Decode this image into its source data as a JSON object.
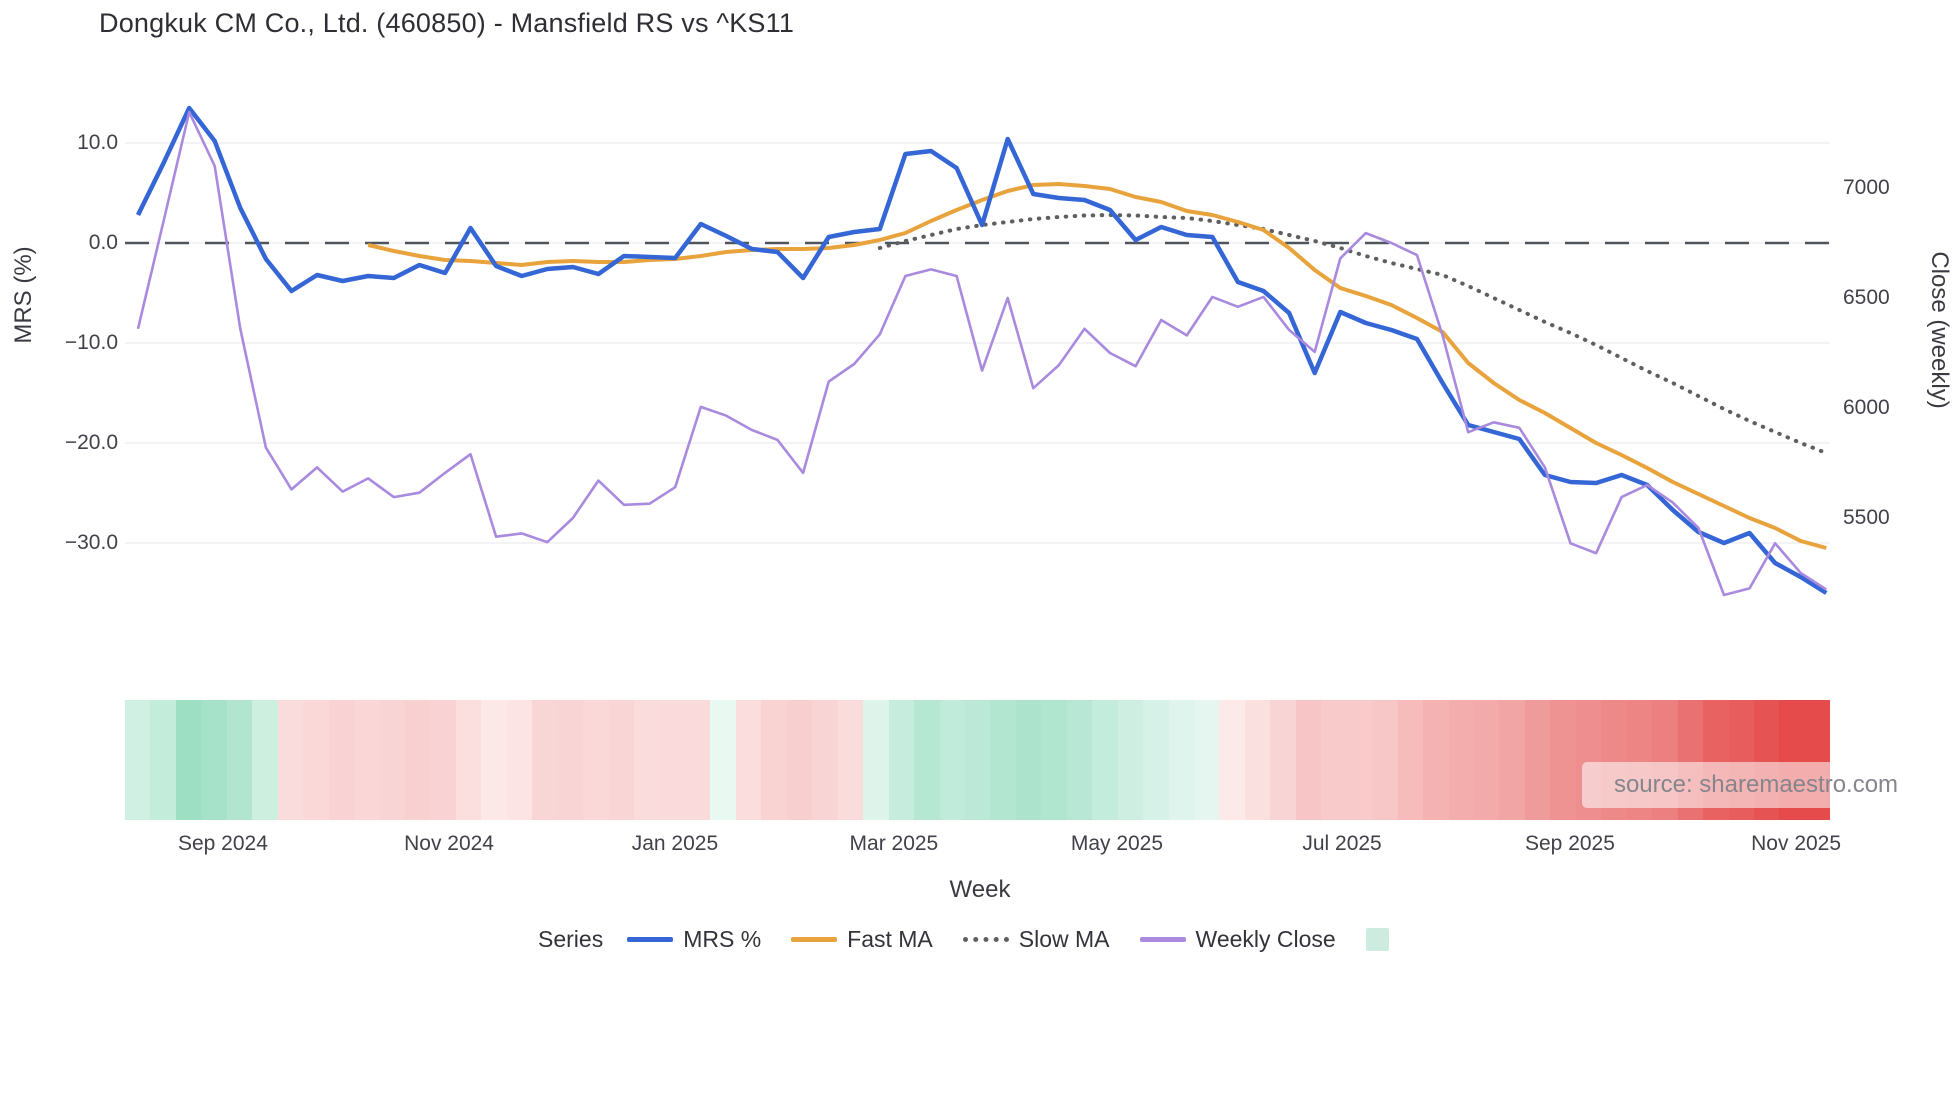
{
  "page": {
    "title": "Dongkuk CM Co., Ltd. (460850) - Mansfield RS vs ^KS11",
    "source_note": "source: sharemaestro.com"
  },
  "legend": {
    "title": "Series",
    "items": [
      {
        "label": "MRS %",
        "color": "#3466d6",
        "style": "line"
      },
      {
        "label": "Fast MA",
        "color": "#e8a33c",
        "style": "line"
      },
      {
        "label": "Slow MA",
        "color": "#5f5f5f",
        "style": "dotted"
      },
      {
        "label": "Weekly Close",
        "color": "#a98ade",
        "style": "line"
      },
      {
        "label": "",
        "color": "#cdecdf",
        "style": "square"
      }
    ]
  },
  "colors": {
    "background": "#ffffff",
    "grid": "#ececf1",
    "zero_line": "#4e555d",
    "title_text": "#2e2e34",
    "tick_text": "#41414a",
    "source_text": "#85858d"
  },
  "chart_data": {
    "type": "line",
    "title": "Dongkuk CM Co., Ltd. (460850) - Mansfield RS vs ^KS11",
    "xlabel": "Week",
    "ylabel_left": "MRS (%)",
    "ylabel_right": "Close (weekly)",
    "grid": "horizontal-only",
    "legend_position": "bottom",
    "zero_reference_line": 0.0,
    "x_ticks": [
      {
        "label": "Sep 2024",
        "week": 3.32
      },
      {
        "label": "Nov 2024",
        "week": 12.16
      },
      {
        "label": "Jan 2025",
        "week": 20.99
      },
      {
        "label": "Mar 2025",
        "week": 29.55
      },
      {
        "label": "May 2025",
        "week": 38.27
      },
      {
        "label": "Jul 2025",
        "week": 47.07
      },
      {
        "label": "Sep 2025",
        "week": 55.98
      },
      {
        "label": "Nov 2025",
        "week": 64.82
      }
    ],
    "left_axis": {
      "ticks": [
        {
          "label": "10.0",
          "value": 10
        },
        {
          "label": "0.0",
          "value": 0
        },
        {
          "label": "−10.0",
          "value": -10
        },
        {
          "label": "−20.0",
          "value": -20
        },
        {
          "label": "−30.0",
          "value": -30
        }
      ],
      "range_approx": [
        -36,
        15.8
      ]
    },
    "right_axis": {
      "ticks": [
        {
          "label": "7000",
          "value": 7000
        },
        {
          "label": "6500",
          "value": 6500
        },
        {
          "label": "6000",
          "value": 6000
        },
        {
          "label": "5500",
          "value": 5500
        }
      ],
      "range_approx": [
        4850,
        7460
      ]
    },
    "series": [
      {
        "name": "MRS %",
        "axis": "left",
        "color": "#3466d6",
        "width": 4.5,
        "dash": "solid",
        "start_week": 0,
        "values": [
          2.8,
          8.0,
          13.5,
          10.2,
          3.5,
          -1.6,
          -4.8,
          -3.2,
          -3.8,
          -3.3,
          -3.5,
          -2.2,
          -3.0,
          1.5,
          -2.3,
          -3.3,
          -2.6,
          -2.4,
          -3.1,
          -1.3,
          -1.4,
          -1.5,
          1.9,
          0.7,
          -0.6,
          -0.9,
          -3.5,
          0.6,
          1.1,
          1.4,
          8.9,
          9.2,
          7.5,
          1.8,
          10.4,
          4.9,
          4.5,
          4.3,
          3.3,
          0.3,
          1.6,
          0.8,
          0.6,
          -3.9,
          -4.8,
          -7.0,
          -13.0,
          -6.9,
          -8.0,
          -8.7,
          -9.6,
          -14.0,
          -18.2,
          -18.9,
          -19.6,
          -23.2,
          -23.9,
          -24.0,
          -23.2,
          -24.2,
          -26.7,
          -28.9,
          -30.0,
          -29.0,
          -32.0,
          -33.4,
          -35.0
        ]
      },
      {
        "name": "Fast MA",
        "axis": "left",
        "color": "#e8a33c",
        "width": 4,
        "dash": "solid",
        "start_week": 9,
        "values": [
          -0.2,
          -0.8,
          -1.3,
          -1.7,
          -1.8,
          -2.0,
          -2.2,
          -1.9,
          -1.8,
          -1.9,
          -1.9,
          -1.7,
          -1.6,
          -1.3,
          -0.9,
          -0.7,
          -0.6,
          -0.6,
          -0.5,
          -0.2,
          0.3,
          1.0,
          2.2,
          3.3,
          4.3,
          5.2,
          5.8,
          5.9,
          5.7,
          5.4,
          4.6,
          4.1,
          3.2,
          2.8,
          2.1,
          1.3,
          -0.5,
          -2.7,
          -4.5,
          -5.3,
          -6.2,
          -7.5,
          -8.9,
          -12.0,
          -14.0,
          -15.7,
          -17.0,
          -18.5,
          -20.0,
          -21.2,
          -22.5,
          -23.9,
          -25.1,
          -26.3,
          -27.5,
          -28.5,
          -29.8,
          -30.5
        ]
      },
      {
        "name": "Slow MA",
        "axis": "left",
        "color": "#5f5f5f",
        "width": 3.5,
        "dash": "dotted",
        "start_week": 29,
        "values": [
          -0.5,
          0.2,
          0.8,
          1.4,
          1.8,
          2.1,
          2.4,
          2.6,
          2.75,
          2.8,
          2.75,
          2.6,
          2.5,
          2.2,
          1.8,
          1.4,
          0.8,
          0.2,
          -0.5,
          -1.3,
          -2.0,
          -2.6,
          -3.2,
          -4.3,
          -5.5,
          -6.7,
          -7.9,
          -9.0,
          -10.2,
          -11.5,
          -12.8,
          -14.0,
          -15.3,
          -16.6,
          -17.8,
          -18.9,
          -20.0,
          -21.0
        ]
      },
      {
        "name": "Weekly Close",
        "axis": "right",
        "color": "#a98ade",
        "width": 2.6,
        "dash": "solid",
        "start_week": 0,
        "values": [
          6360,
          6850,
          7345,
          7100,
          6360,
          5820,
          5630,
          5730,
          5620,
          5680,
          5595,
          5615,
          5705,
          5790,
          5415,
          5430,
          5390,
          5500,
          5670,
          5560,
          5565,
          5640,
          6005,
          5965,
          5900,
          5855,
          5705,
          6120,
          6200,
          6335,
          6600,
          6630,
          6600,
          6170,
          6500,
          6090,
          6195,
          6360,
          6250,
          6190,
          6400,
          6330,
          6505,
          6460,
          6505,
          6355,
          6255,
          6680,
          6795,
          6750,
          6695,
          6330,
          5890,
          5935,
          5910,
          5730,
          5385,
          5340,
          5595,
          5650,
          5570,
          5455,
          5150,
          5180,
          5385,
          5250,
          5175
        ]
      }
    ],
    "heatmap_strip": {
      "description": "weekly relative-strength heat cells, green = strong, red = weak",
      "colors": [
        "#cff0e3",
        "#c4ecdb",
        "#9cdfc3",
        "#a5e2c9",
        "#b1e5cf",
        "#ccefe0",
        "#fadcdc",
        "#fbd8d8",
        "#f9d3d3",
        "#fad6d6",
        "#f9d4d4",
        "#f8d0d0",
        "#f9d3d3",
        "#fbdede",
        "#fde8e8",
        "#fce4e4",
        "#f9d6d6",
        "#f9d4d4",
        "#fad8d8",
        "#f9d5d5",
        "#fbdcdc",
        "#fadada",
        "#fadada",
        "#e9f8f1",
        "#fbdddd",
        "#f9d2d2",
        "#f8cfcf",
        "#f9d4d4",
        "#fadcdc",
        "#def3ea",
        "#c5ecdc",
        "#b5e7d3",
        "#c0eada",
        "#bce8d7",
        "#b3e6d1",
        "#abe3cc",
        "#b0e5cf",
        "#b9e7d5",
        "#c4ecdc",
        "#cdeee1",
        "#d6f1e7",
        "#dff4ec",
        "#e4f6ef",
        "#fceaea",
        "#fbe0e0",
        "#f9d4d4",
        "#f7c5c5",
        "#f8caca",
        "#f8caca",
        "#f7c6c6",
        "#f6bcbc",
        "#f4b2b2",
        "#f3adad",
        "#f3aaaa",
        "#f2a5a5",
        "#f09b9b",
        "#ef9292",
        "#ee8e8e",
        "#ee8989",
        "#ed8585",
        "#ec8080",
        "#ea7171",
        "#e86262",
        "#e75c5c",
        "#e65353",
        "#e54b4b",
        "#e54b4b"
      ]
    }
  }
}
